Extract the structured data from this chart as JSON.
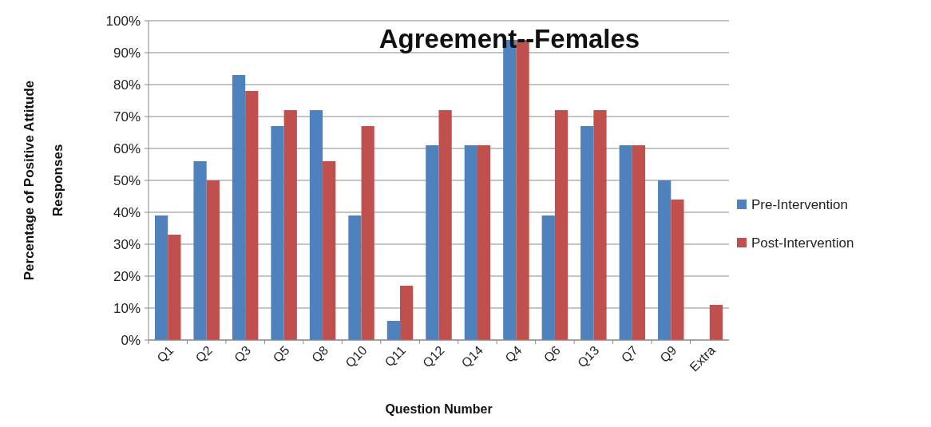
{
  "chart_data": {
    "type": "bar",
    "title": "Agreement--Females",
    "xlabel": "Question Number",
    "ylabel": "Percentage of Positive Attitude Responses",
    "categories": [
      "Q1",
      "Q2",
      "Q3",
      "Q5",
      "Q8",
      "Q10",
      "Q11",
      "Q12",
      "Q14",
      "Q4",
      "Q6",
      "Q13",
      "Q7",
      "Q9",
      "Extra"
    ],
    "series": [
      {
        "name": "Pre-Intervention",
        "color": "#4f81bd",
        "values": [
          39,
          56,
          83,
          67,
          72,
          39,
          6,
          61,
          61,
          94,
          39,
          67,
          61,
          50,
          0
        ]
      },
      {
        "name": "Post-Intervention",
        "color": "#c0504d",
        "values": [
          33,
          50,
          78,
          72,
          56,
          67,
          17,
          72,
          61,
          94,
          72,
          72,
          61,
          44,
          11
        ]
      }
    ],
    "ylim": [
      0,
      100
    ],
    "yticks": [
      {
        "value": 0,
        "label": "0%"
      },
      {
        "value": 10,
        "label": "10%"
      },
      {
        "value": 20,
        "label": "20%"
      },
      {
        "value": 30,
        "label": "30%"
      },
      {
        "value": 40,
        "label": "40%"
      },
      {
        "value": 50,
        "label": "50%"
      },
      {
        "value": 60,
        "label": "60%"
      },
      {
        "value": 70,
        "label": "70%"
      },
      {
        "value": 80,
        "label": "80%"
      },
      {
        "value": 90,
        "label": "90%"
      },
      {
        "value": 100,
        "label": "100%"
      }
    ],
    "grid": "y",
    "legend": "right"
  }
}
